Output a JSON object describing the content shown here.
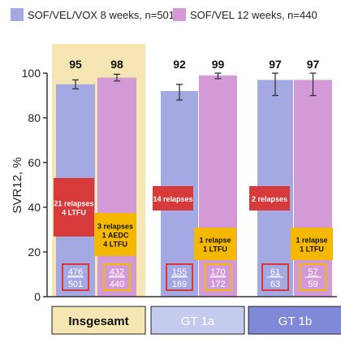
{
  "chart_data": {
    "type": "bar",
    "ylabel": "SVR12, %",
    "ylim": [
      0,
      100
    ],
    "yticks": [
      "0",
      "20",
      "40",
      "60",
      "80",
      "100"
    ],
    "grid": false,
    "legend_position": "top",
    "categories": [
      "Insgesamt",
      "GT 1a",
      "GT 1b"
    ],
    "category_colors": [
      "#f5e6b3",
      "#c5cbef",
      "#7f89d6"
    ],
    "category_text_colors": [
      "#111111",
      "#ffffff",
      "#ffffff"
    ],
    "series": [
      {
        "name": "SOF/VEL/VOX 8 weeks, n=501",
        "color": "#a4a8e3",
        "values": [
          95,
          92,
          97
        ],
        "value_labels": [
          "95",
          "92",
          "97"
        ],
        "error_low": [
          93,
          88,
          90
        ],
        "error_high": [
          97,
          95,
          100
        ],
        "counts": [
          [
            "476",
            "501"
          ],
          [
            "155",
            "169"
          ],
          [
            "61",
            "63"
          ]
        ],
        "annotation_color": "#d63a3a",
        "annotations": [
          [
            "21 relapses",
            "4 LTFU"
          ],
          [
            "14 relapses"
          ],
          [
            "2 relapses"
          ]
        ]
      },
      {
        "name": "SOF/VEL 12 weeks, n=440",
        "color": "#d49ad8",
        "values": [
          98,
          99,
          97
        ],
        "value_labels": [
          "98",
          "99",
          "97"
        ],
        "error_low": [
          96.5,
          97.5,
          90
        ],
        "error_high": [
          99.5,
          100,
          100
        ],
        "counts": [
          [
            "432",
            "440"
          ],
          [
            "170",
            "172"
          ],
          [
            "57",
            "59"
          ]
        ],
        "annotation_color": "#f5b800",
        "annotations": [
          [
            "3 relapses",
            "1 AEDC",
            "4 LTFU"
          ],
          [
            "1 relapse",
            "1 LTFU"
          ],
          [
            "1 relapse",
            "1 LTFU"
          ]
        ]
      }
    ]
  }
}
